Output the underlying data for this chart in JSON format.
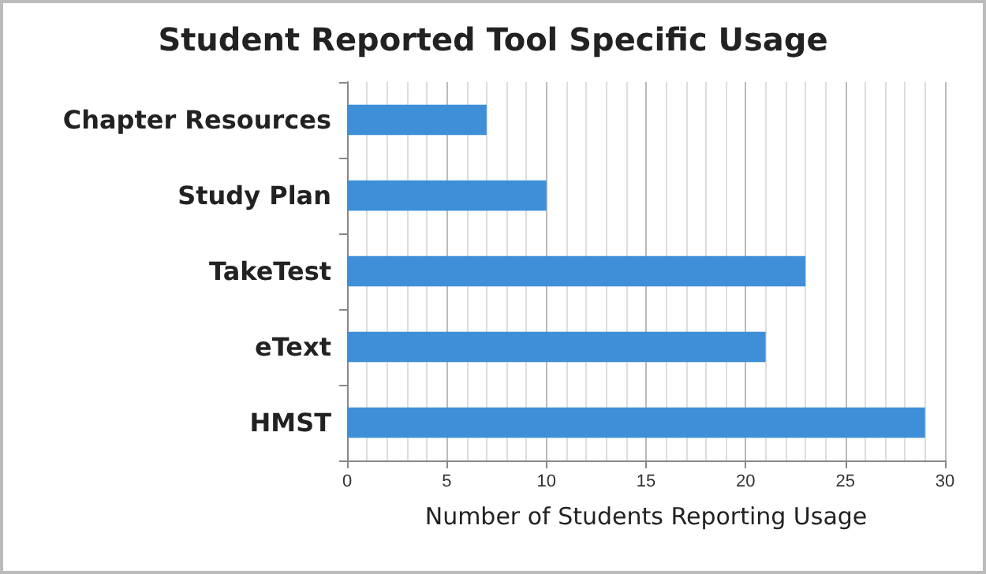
{
  "chart_data": {
    "type": "bar",
    "orientation": "horizontal",
    "title": "Student Reported Tool Specific Usage",
    "categories": [
      "Chapter Resources",
      "Study Plan",
      "TakeTest",
      "eText",
      "HMST"
    ],
    "values": [
      7,
      10,
      23,
      21,
      29
    ],
    "color": "#3f8fd8",
    "xlabel": "Number of Students Reporting Usage",
    "xlim": [
      0,
      30
    ],
    "xticks": [
      0,
      5,
      10,
      15,
      20,
      25,
      30
    ],
    "grid": "x"
  }
}
